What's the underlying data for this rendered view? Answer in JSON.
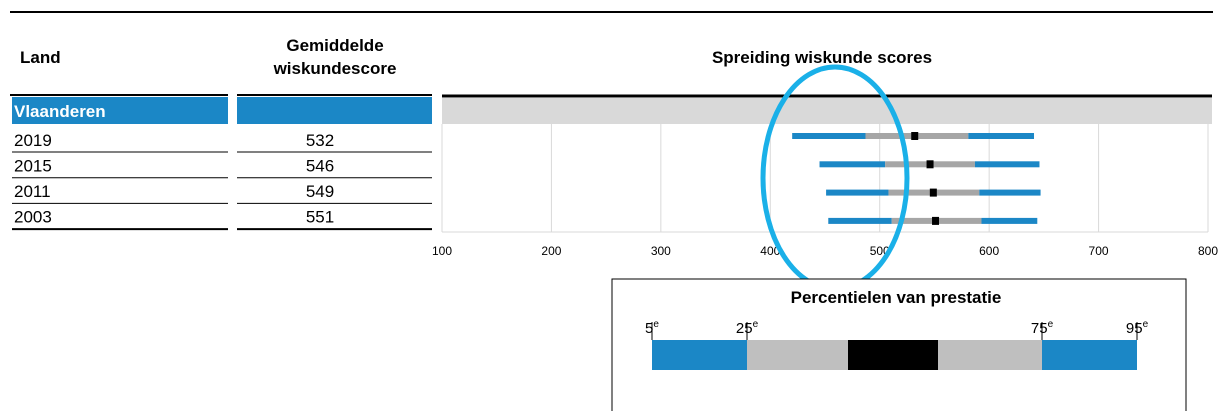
{
  "header": {
    "land": "Land",
    "score": [
      "Gemiddelde",
      "wiskundescore"
    ]
  },
  "chart_data": {
    "type": "percentile-bar",
    "title": "Spreiding wiskunde scores",
    "group": "Vlaanderen",
    "categories": [
      "2019",
      "2015",
      "2011",
      "2003"
    ],
    "mean": [
      532,
      546,
      549,
      551
    ],
    "p5": [
      420,
      445,
      451,
      453
    ],
    "p25": [
      487,
      505,
      508,
      511
    ],
    "p75": [
      581,
      587,
      591,
      593
    ],
    "p95": [
      641,
      646,
      647,
      644
    ],
    "xlim": [
      100,
      800
    ],
    "xticks": [
      100,
      200,
      300,
      400,
      500,
      600,
      700,
      800
    ],
    "grid": true,
    "colors": {
      "outer": "#1b87c6",
      "inner": "#a6a6a6",
      "mean": "#000000"
    }
  },
  "legend": {
    "title": "Percentielen van prestatie",
    "labels": [
      {
        "number": "5",
        "suffix": "e"
      },
      {
        "number": "25",
        "suffix": "e"
      },
      {
        "number": "75",
        "suffix": "e"
      },
      {
        "number": "95",
        "suffix": "e"
      }
    ]
  }
}
